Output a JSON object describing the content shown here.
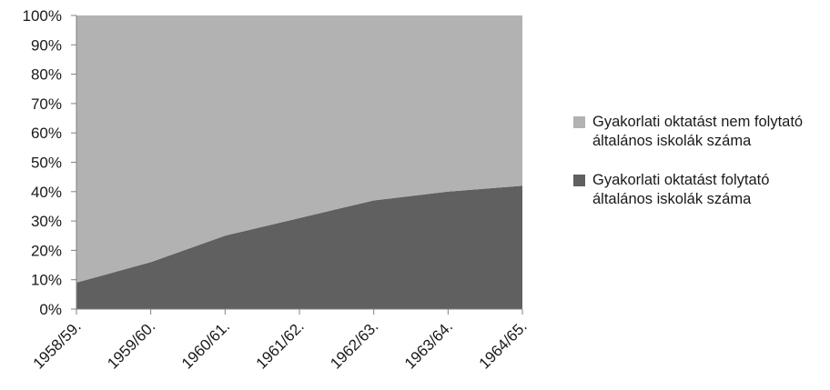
{
  "chart_data": {
    "type": "area",
    "stacked": "percent",
    "categories": [
      "1958/59.",
      "1959/60.",
      "1960/61.",
      "1961/62.",
      "1962/63.",
      "1963/64.",
      "1964/65."
    ],
    "series": [
      {
        "name": "Gyakorlati oktatást folytató általános iskolák száma",
        "color": "#606060",
        "values": [
          9,
          16,
          25,
          31,
          37,
          40,
          42
        ]
      },
      {
        "name": "Gyakorlati oktatást nem folytató általános iskolák száma",
        "color": "#b2b2b2",
        "values": [
          91,
          84,
          75,
          69,
          63,
          60,
          58
        ]
      }
    ],
    "ylim": [
      0,
      100
    ],
    "yticks": [
      "0%",
      "10%",
      "20%",
      "30%",
      "40%",
      "50%",
      "60%",
      "70%",
      "80%",
      "90%",
      "100%"
    ],
    "grid": false,
    "legend_position": "right",
    "legend_order": [
      1,
      0
    ],
    "axis_color": "#808080",
    "title": "",
    "xlabel": "",
    "ylabel": ""
  }
}
